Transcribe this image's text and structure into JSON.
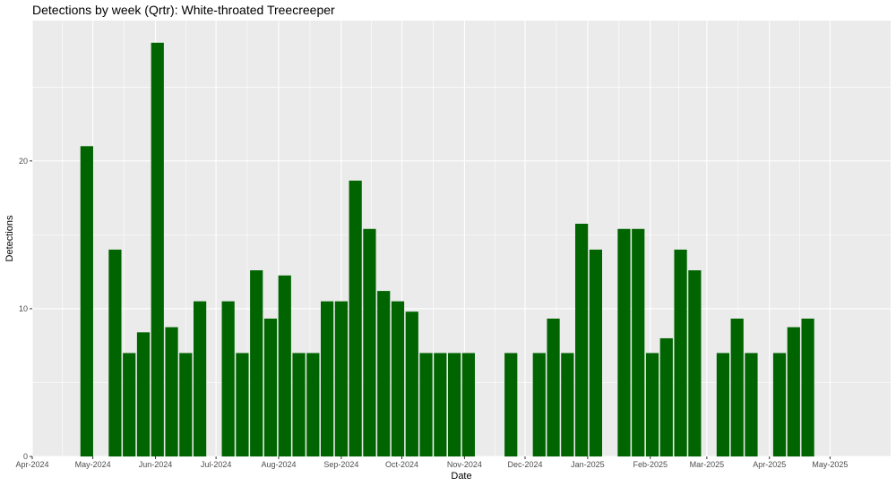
{
  "chart_data": {
    "type": "bar",
    "title": "Detections by week (Qrtr): White-throated Treecreeper",
    "xlabel": "Date",
    "ylabel": "Detections",
    "x_axis_type": "date",
    "xlim": [
      "2024-04-01",
      "2025-05-31"
    ],
    "ylim": [
      0,
      29.5
    ],
    "y_ticks": [
      0,
      10,
      20
    ],
    "x_ticks": [
      {
        "date": "2024-04-01",
        "label": "Apr-2024"
      },
      {
        "date": "2024-05-01",
        "label": "May-2024"
      },
      {
        "date": "2024-06-01",
        "label": "Jun-2024"
      },
      {
        "date": "2024-07-01",
        "label": "Jul-2024"
      },
      {
        "date": "2024-08-01",
        "label": "Aug-2024"
      },
      {
        "date": "2024-09-01",
        "label": "Sep-2024"
      },
      {
        "date": "2024-10-01",
        "label": "Oct-2024"
      },
      {
        "date": "2024-11-01",
        "label": "Nov-2024"
      },
      {
        "date": "2024-12-01",
        "label": "Dec-2024"
      },
      {
        "date": "2025-01-01",
        "label": "Jan-2025"
      },
      {
        "date": "2025-02-01",
        "label": "Feb-2025"
      },
      {
        "date": "2025-03-01",
        "label": "Mar-2025"
      },
      {
        "date": "2025-04-01",
        "label": "Apr-2025"
      },
      {
        "date": "2025-05-01",
        "label": "May-2025"
      }
    ],
    "grid": true,
    "bar_color": "#006400",
    "panel_color": "#ebebeb",
    "x": [
      "2024-04-28",
      "2024-05-12",
      "2024-05-19",
      "2024-05-26",
      "2024-06-02",
      "2024-06-09",
      "2024-06-16",
      "2024-06-23",
      "2024-07-07",
      "2024-07-14",
      "2024-07-21",
      "2024-07-28",
      "2024-08-04",
      "2024-08-11",
      "2024-08-18",
      "2024-08-25",
      "2024-09-01",
      "2024-09-08",
      "2024-09-15",
      "2024-09-22",
      "2024-09-29",
      "2024-10-06",
      "2024-10-13",
      "2024-10-20",
      "2024-10-27",
      "2024-11-03",
      "2024-11-24",
      "2024-12-08",
      "2024-12-15",
      "2024-12-22",
      "2024-12-29",
      "2025-01-05",
      "2025-01-19",
      "2025-01-26",
      "2025-02-02",
      "2025-02-09",
      "2025-02-16",
      "2025-02-23",
      "2025-03-09",
      "2025-03-16",
      "2025-03-23",
      "2025-04-06",
      "2025-04-13",
      "2025-04-20"
    ],
    "values": [
      21,
      14,
      7,
      8.4,
      28,
      8.75,
      7,
      10.5,
      10.5,
      7,
      12.6,
      9.33,
      12.25,
      7,
      7,
      10.5,
      10.5,
      18.67,
      15.4,
      11.2,
      10.5,
      9.8,
      7,
      7,
      7,
      7,
      7,
      7,
      9.33,
      7,
      15.75,
      14,
      15.4,
      15.4,
      7,
      8,
      14,
      12.6,
      7,
      9.33,
      7,
      7,
      8.75,
      9.33
    ]
  }
}
